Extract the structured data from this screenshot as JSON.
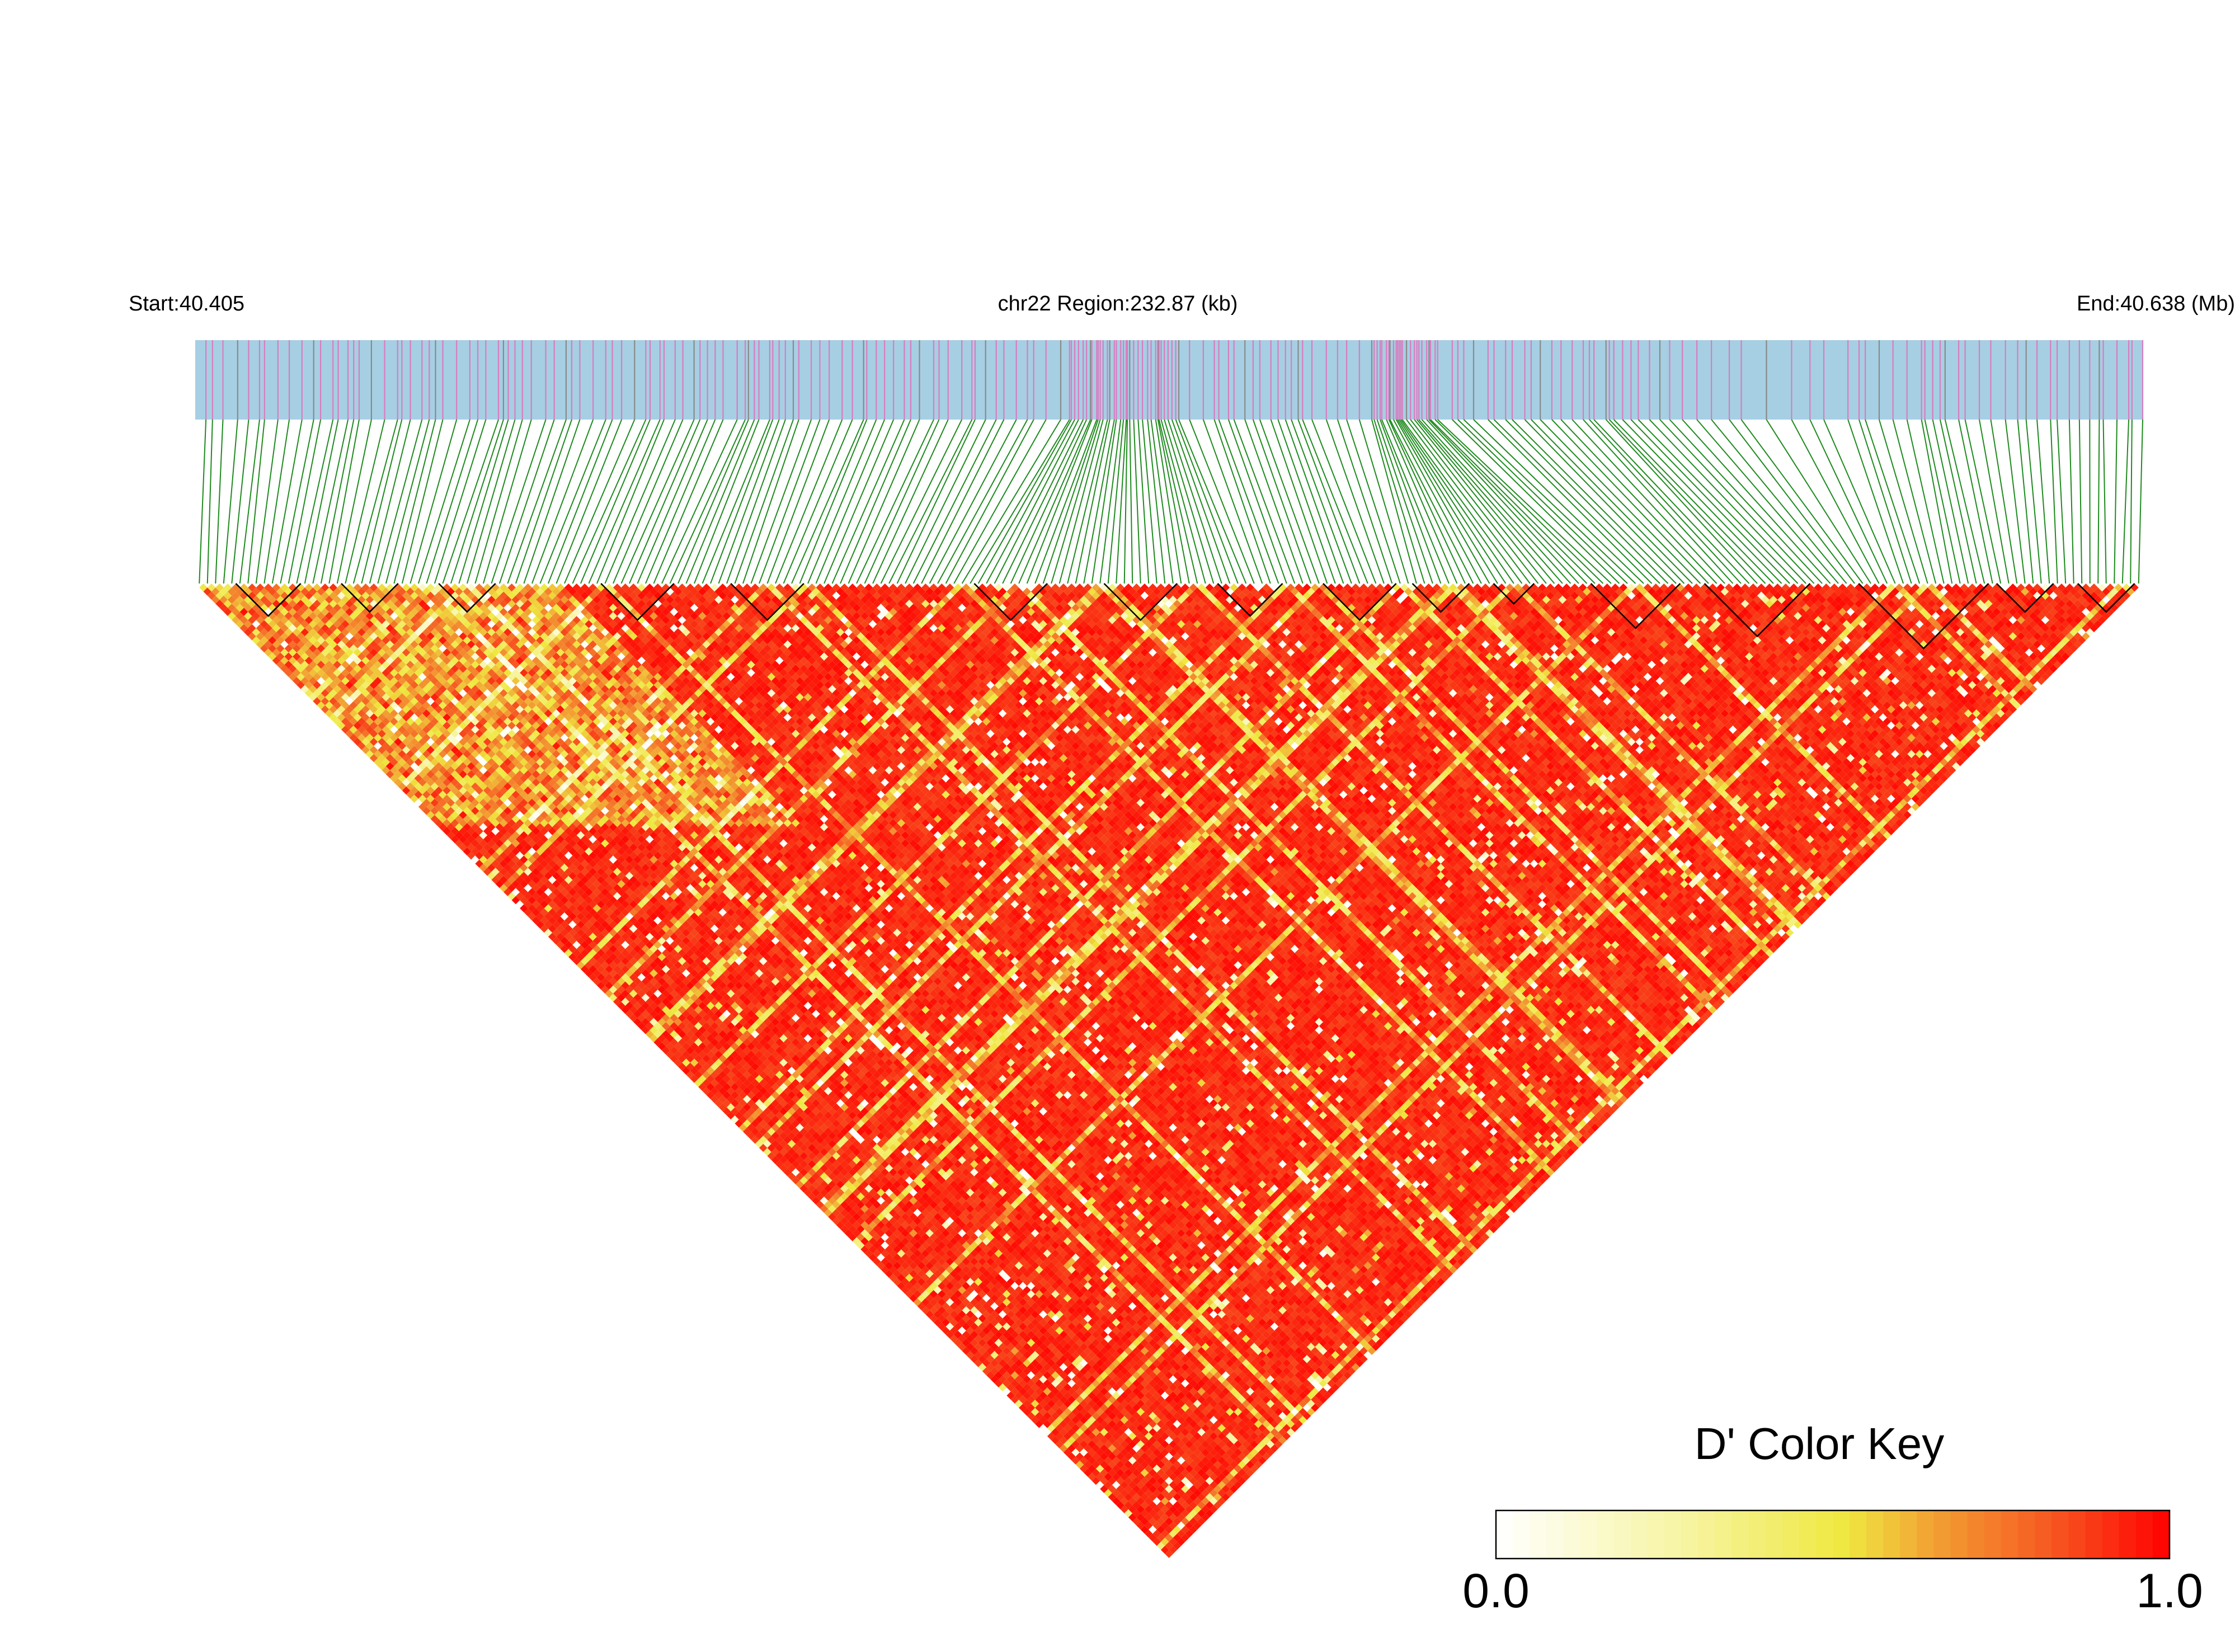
{
  "chart_data": {
    "type": "heatmap",
    "subtype": "LD triangle (LDheatmap)",
    "chromosome": "chr22",
    "start_label": "Start:40.405",
    "region_label": "chr22 Region:232.87 (kb)",
    "end_label": "End:40.638 (Mb)",
    "start_mb": 40.405,
    "end_mb": 40.638,
    "region_kb": 232.87,
    "n_snps": 240,
    "metric": "D'",
    "color_key": {
      "title": "D' Color Key",
      "min_label": "0.0",
      "max_label": "1.0",
      "range": [
        0.0,
        1.0
      ],
      "colors": [
        "#ffffff",
        "#f6f39a",
        "#efe840",
        "#f2a033",
        "#f65a22",
        "#ff0000"
      ]
    },
    "track_colors": {
      "snp_background": "#a6cfe3",
      "snp_tick": "#d97cc0",
      "connector_lines": "#1f8a1f",
      "block_outline": "#000000"
    },
    "haplotype_blocks_snp_ranges": [
      [
        5,
        12
      ],
      [
        18,
        24
      ],
      [
        30,
        36
      ],
      [
        50,
        58
      ],
      [
        66,
        74
      ],
      [
        96,
        104
      ],
      [
        112,
        120
      ],
      [
        126,
        133
      ],
      [
        139,
        147
      ],
      [
        150,
        156
      ],
      [
        160,
        164
      ],
      [
        172,
        182
      ],
      [
        186,
        198
      ],
      [
        205,
        220
      ],
      [
        222,
        228
      ],
      [
        232,
        238
      ]
    ]
  }
}
